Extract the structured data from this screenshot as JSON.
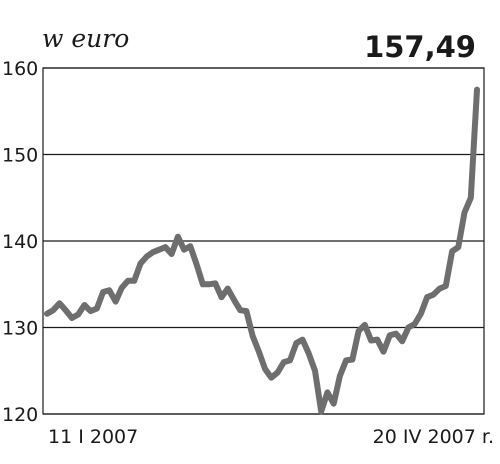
{
  "chart_data": {
    "type": "line",
    "unit_label": "w euro",
    "last_value_label": "157,49",
    "y_ticks": [
      "160",
      "150",
      "140",
      "130",
      "120"
    ],
    "ylim": [
      120,
      160
    ],
    "x_start_label": "11 I 2007",
    "x_end_label": "20 IV 2007 r.",
    "grid": true,
    "series": [
      {
        "color": "#6e6e6e",
        "values": [
          131.6,
          132.0,
          132.8,
          132.0,
          131.1,
          131.5,
          132.6,
          131.9,
          132.2,
          134.1,
          134.3,
          133.0,
          134.6,
          135.4,
          135.4,
          137.4,
          138.2,
          138.7,
          139.0,
          139.3,
          138.5,
          140.5,
          139.0,
          139.4,
          137.3,
          135.0,
          135.0,
          135.1,
          133.5,
          134.5,
          133.2,
          132.0,
          131.9,
          129.0,
          127.2,
          125.2,
          124.2,
          124.8,
          126.0,
          126.2,
          128.2,
          128.6,
          127.0,
          125.0,
          120.3,
          122.5,
          121.2,
          124.4,
          126.2,
          126.3,
          129.6,
          130.3,
          128.5,
          128.6,
          127.2,
          129.1,
          129.3,
          128.4,
          130.0,
          130.4,
          131.6,
          133.5,
          133.8,
          134.5,
          134.8,
          138.8,
          139.3,
          143.3,
          145.0,
          157.5
        ]
      }
    ]
  }
}
